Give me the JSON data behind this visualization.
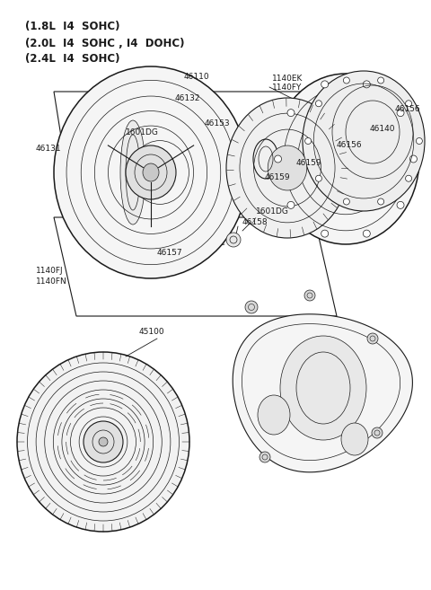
{
  "bg_color": "#ffffff",
  "line_color": "#1a1a1a",
  "header_lines": [
    "(1.8L  I4  SOHC)",
    "(2.0L  I4  SOHC , I4  DOHC)",
    "(2.4L  I4  SOHC)"
  ],
  "font_size_header": 8.5,
  "font_size_label": 6.5
}
